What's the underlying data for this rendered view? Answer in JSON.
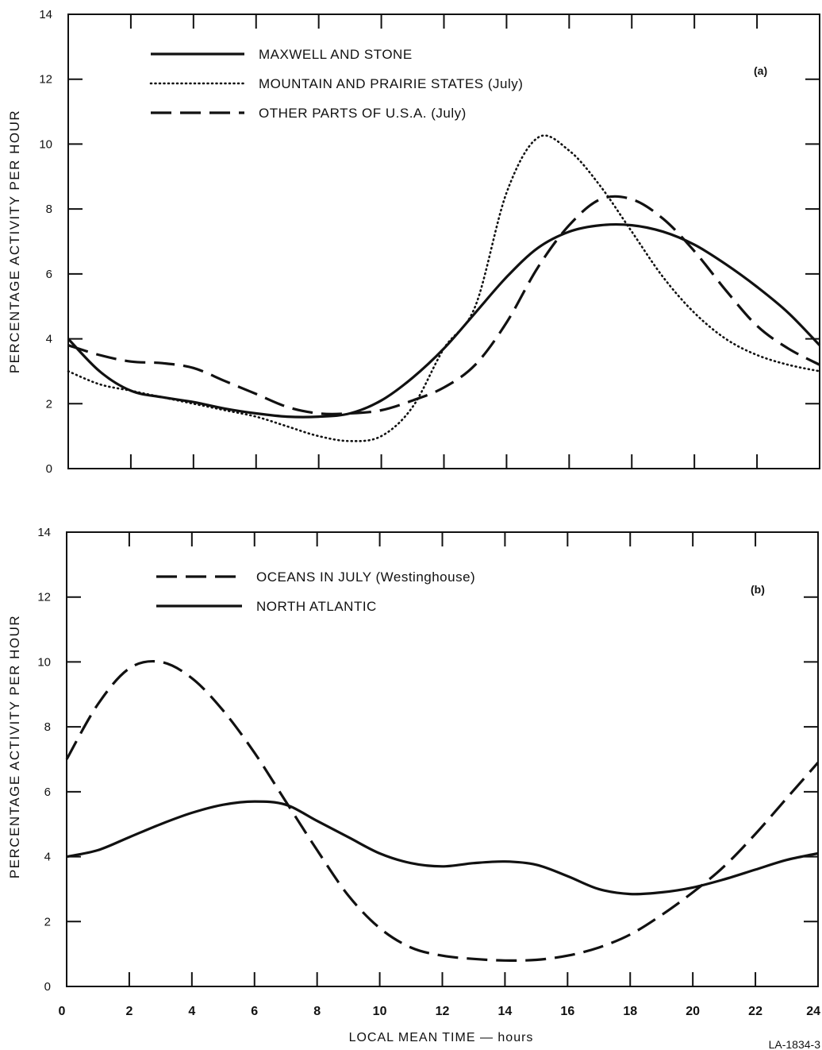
{
  "figure_id": "LA-1834-3",
  "xlabel": "LOCAL MEAN TIME — hours",
  "chart_data": [
    {
      "type": "line",
      "panel_label": "(a)",
      "ylabel": "PERCENTAGE ACTIVITY PER HOUR",
      "xlim": [
        0,
        24
      ],
      "ylim": [
        0,
        14
      ],
      "xticks": [
        0,
        2,
        4,
        6,
        8,
        10,
        12,
        14,
        16,
        18,
        20,
        22,
        24
      ],
      "yticks": [
        "0",
        "2",
        "4",
        "6",
        "8",
        "10",
        "12",
        "14"
      ],
      "legend_position": "top",
      "series": [
        {
          "name": "MAXWELL AND STONE",
          "style": "solid",
          "x": [
            0,
            1,
            2,
            3,
            4,
            5,
            6,
            7,
            8,
            9,
            10,
            11,
            12,
            13,
            14,
            15,
            16,
            17,
            18,
            19,
            20,
            21,
            22,
            23,
            24
          ],
          "y": [
            4.0,
            3.0,
            2.4,
            2.2,
            2.05,
            1.85,
            1.7,
            1.6,
            1.6,
            1.7,
            2.1,
            2.8,
            3.7,
            4.8,
            5.9,
            6.8,
            7.3,
            7.5,
            7.5,
            7.3,
            6.9,
            6.3,
            5.6,
            4.8,
            3.8
          ]
        },
        {
          "name": "MOUNTAIN AND PRAIRIE STATES (July)",
          "style": "dotted",
          "x": [
            0,
            1,
            2,
            3,
            4,
            5,
            6,
            7,
            8,
            9,
            10,
            11,
            12,
            13,
            14,
            15,
            16,
            17,
            18,
            19,
            20,
            21,
            22,
            23,
            24
          ],
          "y": [
            3.0,
            2.6,
            2.4,
            2.2,
            2.0,
            1.8,
            1.6,
            1.3,
            1.0,
            0.85,
            1.0,
            1.9,
            3.7,
            5.0,
            8.5,
            10.2,
            9.8,
            8.7,
            7.3,
            5.9,
            4.8,
            4.0,
            3.5,
            3.2,
            3.0
          ]
        },
        {
          "name": "OTHER PARTS OF U.S.A. (July)",
          "style": "dashed",
          "x": [
            0,
            1,
            2,
            3,
            4,
            5,
            6,
            7,
            8,
            9,
            10,
            11,
            12,
            13,
            14,
            15,
            16,
            17,
            18,
            19,
            20,
            21,
            22,
            23,
            24
          ],
          "y": [
            3.8,
            3.5,
            3.3,
            3.25,
            3.1,
            2.7,
            2.3,
            1.9,
            1.7,
            1.7,
            1.8,
            2.1,
            2.5,
            3.2,
            4.5,
            6.2,
            7.5,
            8.3,
            8.3,
            7.7,
            6.7,
            5.5,
            4.4,
            3.7,
            3.2
          ]
        }
      ]
    },
    {
      "type": "line",
      "panel_label": "(b)",
      "ylabel": "PERCENTAGE ACTIVITY PER HOUR",
      "xlim": [
        0,
        24
      ],
      "ylim": [
        0,
        14
      ],
      "xticks": [
        0,
        2,
        4,
        6,
        8,
        10,
        12,
        14,
        16,
        18,
        20,
        22,
        24
      ],
      "xtick_labels": [
        "0",
        "2",
        "4",
        "6",
        "8",
        "10",
        "12",
        "14",
        "16",
        "18",
        "20",
        "22",
        "24"
      ],
      "yticks": [
        "0",
        "2",
        "4",
        "6",
        "8",
        "10",
        "12",
        "14"
      ],
      "legend_position": "top-left",
      "series": [
        {
          "name": "OCEANS IN JULY (Westinghouse)",
          "style": "dashed",
          "x": [
            0,
            1,
            2,
            3,
            4,
            5,
            6,
            7,
            8,
            9,
            10,
            11,
            12,
            13,
            14,
            15,
            16,
            17,
            18,
            19,
            20,
            21,
            22,
            23,
            24
          ],
          "y": [
            7.0,
            8.7,
            9.8,
            10.0,
            9.5,
            8.5,
            7.2,
            5.7,
            4.2,
            2.8,
            1.8,
            1.2,
            0.95,
            0.85,
            0.8,
            0.82,
            0.95,
            1.2,
            1.6,
            2.2,
            2.9,
            3.7,
            4.7,
            5.8,
            6.9
          ]
        },
        {
          "name": "NORTH ATLANTIC",
          "style": "solid",
          "x": [
            0,
            1,
            2,
            3,
            4,
            5,
            6,
            7,
            8,
            9,
            10,
            11,
            12,
            13,
            14,
            15,
            16,
            17,
            18,
            19,
            20,
            21,
            22,
            23,
            24
          ],
          "y": [
            4.0,
            4.2,
            4.6,
            5.0,
            5.35,
            5.6,
            5.7,
            5.6,
            5.1,
            4.6,
            4.1,
            3.8,
            3.7,
            3.8,
            3.85,
            3.75,
            3.4,
            3.0,
            2.85,
            2.9,
            3.05,
            3.3,
            3.6,
            3.9,
            4.1
          ]
        }
      ]
    }
  ]
}
